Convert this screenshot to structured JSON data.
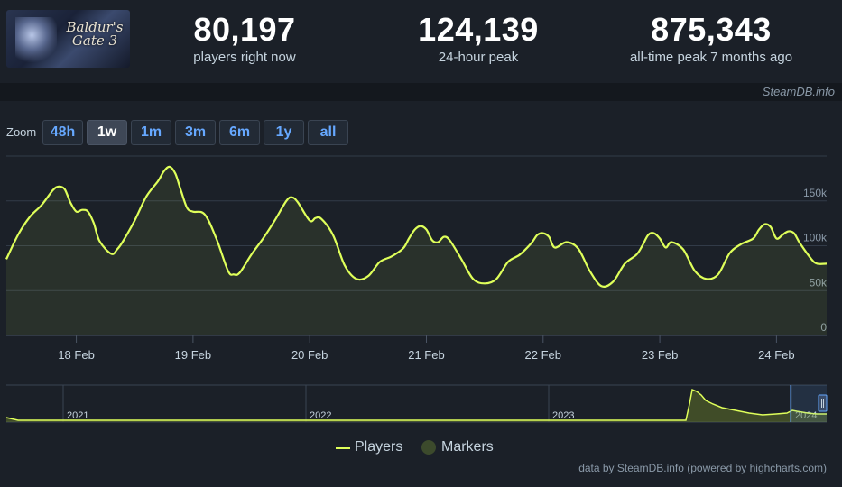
{
  "header": {
    "game_logo_text": "Baldur's Gate 3",
    "stats": [
      {
        "value": "80,197",
        "label": "players right now"
      },
      {
        "value": "124,139",
        "label": "24-hour peak"
      },
      {
        "value": "875,343",
        "label": "all-time peak 7 months ago"
      }
    ]
  },
  "brand": "SteamDB.info",
  "zoom": {
    "label": "Zoom",
    "options": [
      "48h",
      "1w",
      "1m",
      "3m",
      "6m",
      "1y",
      "all"
    ],
    "selected": "1w"
  },
  "chart_data": {
    "type": "line",
    "title": "",
    "xlabel": "",
    "ylabel": "",
    "x_tick_labels": [
      "18 Feb",
      "19 Feb",
      "20 Feb",
      "21 Feb",
      "22 Feb",
      "23 Feb",
      "24 Feb"
    ],
    "y_tick_labels": [
      "0",
      "50k",
      "100k",
      "150k"
    ],
    "ylim": [
      0,
      200000
    ],
    "xlim": [
      17.4,
      24.43
    ],
    "grid": true,
    "series": [
      {
        "name": "Players",
        "color": "#dfff5a",
        "x": [
          17.4,
          17.5,
          17.6,
          17.7,
          17.8,
          17.85,
          17.9,
          17.95,
          18.0,
          18.05,
          18.1,
          18.15,
          18.2,
          18.3,
          18.35,
          18.4,
          18.5,
          18.6,
          18.7,
          18.75,
          18.8,
          18.85,
          18.9,
          18.95,
          19.0,
          19.1,
          19.2,
          19.3,
          19.35,
          19.4,
          19.5,
          19.6,
          19.7,
          19.8,
          19.85,
          19.9,
          20.0,
          20.05,
          20.1,
          20.2,
          20.3,
          20.4,
          20.5,
          20.6,
          20.7,
          20.8,
          20.85,
          20.9,
          20.95,
          21.0,
          21.05,
          21.1,
          21.15,
          21.2,
          21.3,
          21.4,
          21.5,
          21.6,
          21.7,
          21.8,
          21.9,
          21.95,
          22.0,
          22.05,
          22.1,
          22.2,
          22.3,
          22.4,
          22.5,
          22.6,
          22.7,
          22.8,
          22.85,
          22.9,
          22.95,
          23.0,
          23.05,
          23.1,
          23.2,
          23.3,
          23.4,
          23.5,
          23.6,
          23.7,
          23.8,
          23.85,
          23.9,
          23.95,
          24.0,
          24.05,
          24.1,
          24.15,
          24.2,
          24.3,
          24.35,
          24.43
        ],
        "y": [
          85000,
          112000,
          132000,
          145000,
          162000,
          166000,
          163000,
          148000,
          138000,
          140000,
          138000,
          125000,
          105000,
          91000,
          96000,
          105000,
          128000,
          155000,
          172000,
          183000,
          188000,
          180000,
          160000,
          142000,
          138000,
          135000,
          108000,
          72000,
          68000,
          70000,
          90000,
          108000,
          128000,
          150000,
          154000,
          148000,
          128000,
          131000,
          130000,
          112000,
          78000,
          63000,
          66000,
          82000,
          88000,
          97000,
          108000,
          118000,
          122000,
          118000,
          106000,
          104000,
          110000,
          106000,
          85000,
          63000,
          58000,
          63000,
          82000,
          90000,
          103000,
          112000,
          114000,
          110000,
          98000,
          104000,
          97000,
          72000,
          55000,
          60000,
          80000,
          90000,
          100000,
          112000,
          114000,
          108000,
          98000,
          104000,
          96000,
          72000,
          63000,
          68000,
          92000,
          102000,
          108000,
          118000,
          124000,
          121000,
          108000,
          112000,
          116000,
          114000,
          103000,
          85000,
          80000,
          80000
        ]
      },
      {
        "name": "Markers"
      }
    ]
  },
  "navigator": {
    "years": [
      "2021",
      "2022",
      "2023",
      "2024"
    ]
  },
  "credits": "data by SteamDB.info (powered by highcharts.com)"
}
